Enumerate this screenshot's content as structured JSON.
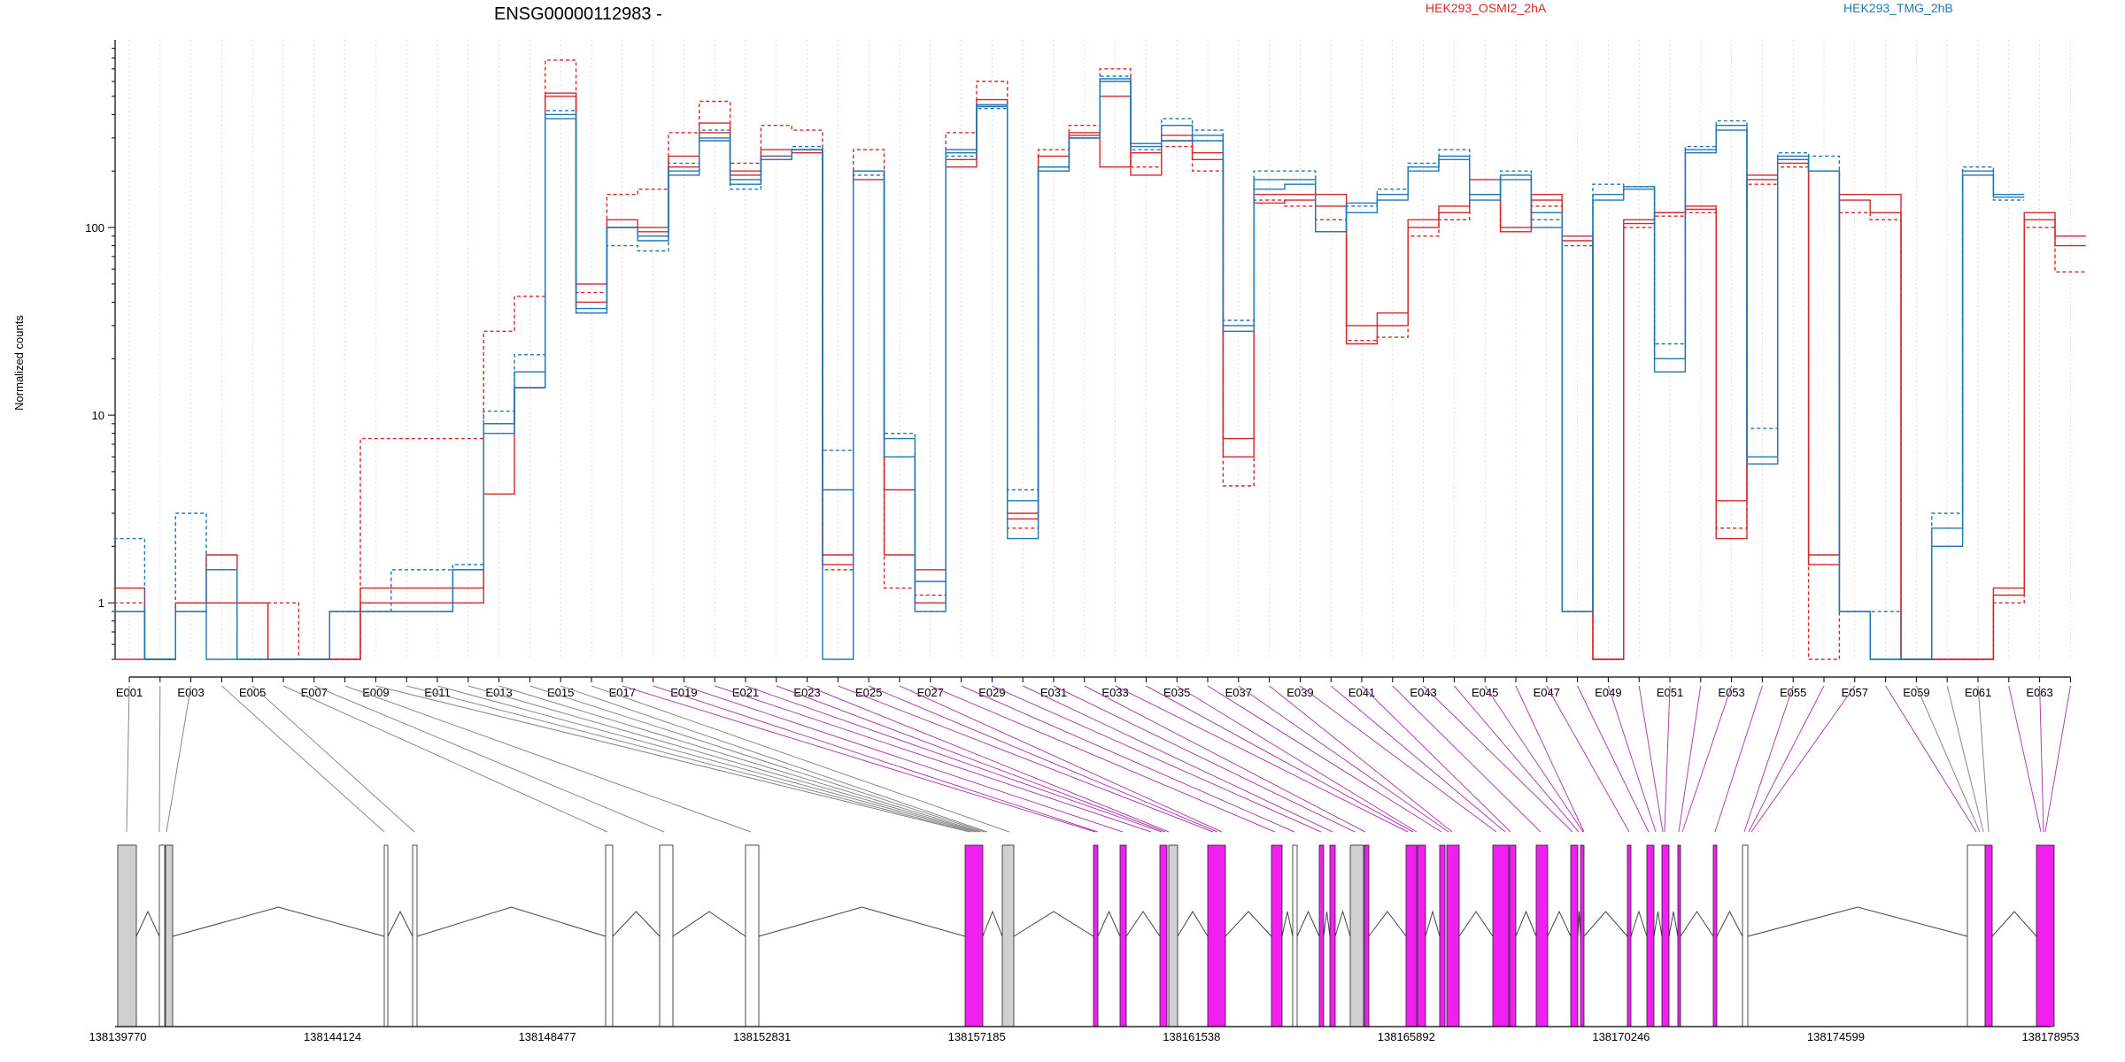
{
  "chart_data": {
    "type": "line",
    "title": "ENSG00000112983 -",
    "ylabel": "Normalized counts",
    "yscale": "log",
    "ylim": [
      0.5,
      1000
    ],
    "y_ticks": [
      1,
      10,
      100
    ],
    "y_tick_labels": [
      "1",
      "10",
      "100"
    ],
    "exon_labels": [
      "E001",
      "E003",
      "E005",
      "E007",
      "E009",
      "E011",
      "E013",
      "E015",
      "E017",
      "E019",
      "E021",
      "E023",
      "E025",
      "E027",
      "E029",
      "E031",
      "E033",
      "E035",
      "E037",
      "E039",
      "E041",
      "E043",
      "E045",
      "E047",
      "E049",
      "E051",
      "E053",
      "E055",
      "E057",
      "E059",
      "E061",
      "E063"
    ],
    "grid": "vertical-dotted",
    "legend": "top",
    "series": [
      {
        "name": "HEK293_OSMI2_2hA",
        "color": "#d62728",
        "line_style": "solid",
        "values": [
          1.2,
          0.5,
          1,
          1.8,
          1,
          0.5,
          0.5,
          0.5,
          1.2,
          1.2,
          1.2,
          1.2,
          9,
          14,
          500,
          50,
          110,
          95,
          210,
          320,
          200,
          240,
          260,
          1.8,
          200,
          1.8,
          1,
          230,
          480,
          3,
          240,
          320,
          210,
          250,
          290,
          230,
          7.5,
          150,
          150,
          130,
          30,
          35,
          110,
          120,
          150,
          100,
          140,
          90,
          0.5,
          110,
          120,
          125,
          3.5,
          190,
          230,
          1.8,
          150,
          150,
          0.5,
          0.5,
          0.5,
          1.2,
          110,
          90
        ]
      },
      {
        "name": "HEK293_OSMI2_2hA",
        "color": "#d62728",
        "line_style": "dashed",
        "values": [
          1,
          0.5,
          1,
          1,
          1,
          1,
          0.5,
          0.5,
          7.5,
          7.5,
          7.5,
          7.5,
          28,
          43,
          780,
          45,
          150,
          160,
          320,
          470,
          220,
          350,
          330,
          1.5,
          260,
          1.2,
          1.1,
          320,
          600,
          2.5,
          260,
          350,
          700,
          210,
          270,
          200,
          4.2,
          140,
          130,
          110,
          25,
          26,
          90,
          110,
          150,
          95,
          130,
          80,
          0.5,
          100,
          115,
          120,
          2.5,
          170,
          210,
          0.5,
          120,
          110,
          0.5,
          0.5,
          0.5,
          1,
          100,
          58
        ]
      },
      {
        "name": "HEK293_OSMI2_2hA",
        "color": "#d62728",
        "line_style": "solid",
        "values": [
          0.5,
          0.5,
          1,
          1,
          1,
          0.5,
          0.5,
          0.5,
          1,
          1,
          1,
          1,
          3.8,
          14,
          520,
          40,
          100,
          100,
          240,
          360,
          190,
          260,
          250,
          1.6,
          180,
          4,
          1.5,
          210,
          450,
          2.8,
          210,
          310,
          500,
          190,
          310,
          250,
          6,
          135,
          140,
          150,
          24,
          30,
          100,
          130,
          180,
          95,
          150,
          85,
          0.5,
          105,
          120,
          130,
          2.2,
          180,
          220,
          1.6,
          140,
          120,
          0.5,
          0.5,
          0.5,
          1.1,
          120,
          80
        ]
      },
      {
        "name": "HEK293_TMG_2hB",
        "color": "#1f77b4",
        "line_style": "solid",
        "values": [
          0.9,
          0.5,
          0.9,
          0.5,
          0.5,
          0.5,
          0.5,
          0.9,
          0.9,
          0.9,
          0.9,
          1.5,
          8,
          14,
          380,
          35,
          100,
          90,
          200,
          300,
          170,
          230,
          260,
          0.5,
          200,
          6,
          0.9,
          250,
          450,
          3.5,
          210,
          300,
          620,
          280,
          290,
          310,
          30,
          160,
          170,
          95,
          120,
          140,
          200,
          230,
          140,
          180,
          120,
          0.9,
          150,
          160,
          20,
          260,
          350,
          6,
          240,
          200,
          0.9,
          0.5,
          0.5,
          2.5,
          200,
          150
        ]
      },
      {
        "name": "HEK293_TMG_2hB",
        "color": "#1f77b4",
        "line_style": "dashed",
        "values": [
          2.2,
          0.5,
          3,
          1.5,
          0.5,
          0.5,
          0.5,
          0.9,
          0.9,
          1.5,
          1.5,
          1.6,
          10.5,
          21,
          420,
          35,
          80,
          75,
          220,
          330,
          160,
          240,
          270,
          6.5,
          190,
          8,
          0.9,
          240,
          430,
          4,
          200,
          300,
          640,
          260,
          380,
          330,
          32,
          200,
          200,
          95,
          130,
          160,
          220,
          260,
          150,
          200,
          110,
          0.9,
          170,
          165,
          24,
          270,
          370,
          8.5,
          250,
          240,
          0.9,
          0.9,
          0.5,
          3,
          210,
          140
        ]
      },
      {
        "name": "HEK293_TMG_2hB",
        "color": "#1f77b4",
        "line_style": "solid",
        "values": [
          0.9,
          0.5,
          0.9,
          1.5,
          0.5,
          0.5,
          0.5,
          0.9,
          0.9,
          0.9,
          0.9,
          1.5,
          9,
          17,
          400,
          37,
          100,
          85,
          190,
          290,
          180,
          230,
          260,
          4,
          200,
          7.5,
          1.3,
          260,
          440,
          2.2,
          200,
          300,
          600,
          270,
          350,
          290,
          28,
          180,
          180,
          95,
          135,
          150,
          210,
          240,
          150,
          190,
          100,
          0.9,
          140,
          165,
          17,
          250,
          330,
          5.5,
          230,
          200,
          0.9,
          0.5,
          0.5,
          2,
          190,
          145
        ]
      }
    ]
  },
  "legend": [
    {
      "label": "HEK293_OSMI2_2hA",
      "color": "#d62728"
    },
    {
      "label": "HEK293_TMG_2hB",
      "color": "#1f77b4"
    }
  ],
  "gene_model": {
    "coordinate_labels": [
      "138139770",
      "138144124",
      "138148477",
      "138152831",
      "138157185",
      "138161538",
      "138165892",
      "138170246",
      "138174599",
      "138178953"
    ],
    "exon_fill_colors": {
      "constitutive": "#d0d0d0",
      "untested": "#ffffff",
      "significant": "#f020f0"
    }
  }
}
